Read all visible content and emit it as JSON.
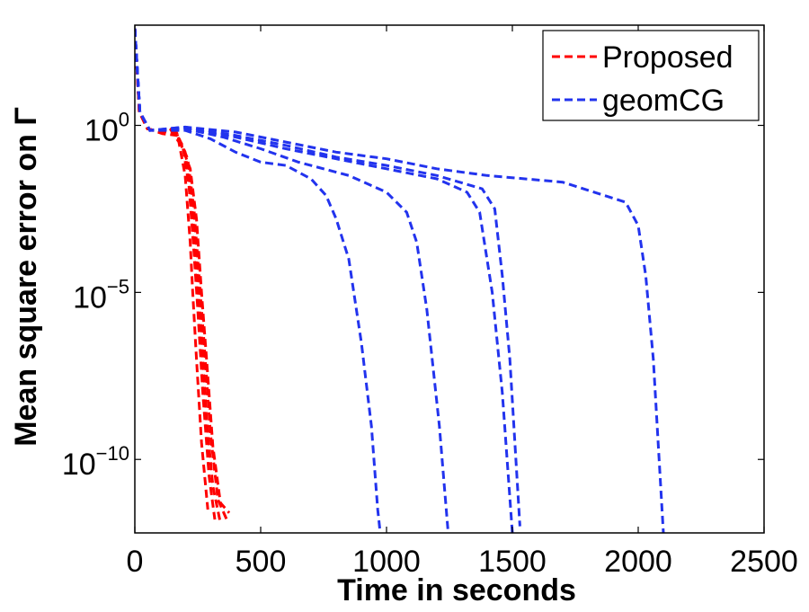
{
  "chart_data": {
    "type": "line",
    "title": "",
    "xlabel": "Time in seconds",
    "ylabel": "Mean square error on Γ",
    "x_scale": "linear",
    "y_scale": "log",
    "xlim": [
      0,
      2500
    ],
    "ylim_exponent": [
      -12.2,
      3
    ],
    "x_ticks": [
      0,
      500,
      1000,
      1500,
      2000,
      2500
    ],
    "x_tick_labels": [
      "0",
      "500",
      "1000",
      "1500",
      "2000",
      "2500"
    ],
    "y_ticks": [
      {
        "exponent": 0,
        "base": "10",
        "sup": "0"
      },
      {
        "exponent": -5,
        "base": "10",
        "sup": "−5"
      },
      {
        "exponent": -10,
        "base": "10",
        "sup": "−10"
      }
    ],
    "legend_position": "top-right",
    "colors": {
      "proposed": "#ff0000",
      "geomcg": "#2233ee"
    },
    "series": [
      {
        "name": "Proposed",
        "group": "proposed",
        "legend": true,
        "points": [
          [
            0,
            2.9
          ],
          [
            18,
            0.4
          ],
          [
            50,
            -0.1
          ],
          [
            100,
            -0.2
          ],
          [
            140,
            -0.1
          ],
          [
            175,
            -0.5
          ],
          [
            200,
            -1.5
          ],
          [
            220,
            -3.5
          ],
          [
            230,
            -5
          ],
          [
            245,
            -7
          ],
          [
            265,
            -9.5
          ],
          [
            290,
            -11.5
          ]
        ]
      },
      {
        "name": "Proposed-2",
        "group": "proposed",
        "legend": false,
        "points": [
          [
            0,
            2.9
          ],
          [
            18,
            0.4
          ],
          [
            50,
            -0.1
          ],
          [
            100,
            -0.2
          ],
          [
            150,
            -0.1
          ],
          [
            190,
            -0.6
          ],
          [
            215,
            -1.8
          ],
          [
            235,
            -3.8
          ],
          [
            250,
            -5.5
          ],
          [
            270,
            -8
          ],
          [
            295,
            -10.5
          ],
          [
            318,
            -11.8
          ]
        ]
      },
      {
        "name": "Proposed-3",
        "group": "proposed",
        "legend": false,
        "points": [
          [
            0,
            2.9
          ],
          [
            18,
            0.4
          ],
          [
            50,
            -0.1
          ],
          [
            100,
            -0.2
          ],
          [
            160,
            -0.15
          ],
          [
            200,
            -0.8
          ],
          [
            225,
            -2.2
          ],
          [
            245,
            -4.2
          ],
          [
            262,
            -6
          ],
          [
            285,
            -8.8
          ],
          [
            310,
            -10.8
          ],
          [
            340,
            -11.9
          ]
        ]
      },
      {
        "name": "Proposed-4",
        "group": "proposed",
        "legend": false,
        "points": [
          [
            0,
            2.9
          ],
          [
            18,
            0.4
          ],
          [
            50,
            -0.1
          ],
          [
            100,
            -0.2
          ],
          [
            165,
            -0.2
          ],
          [
            210,
            -1
          ],
          [
            235,
            -2.5
          ],
          [
            255,
            -4.5
          ],
          [
            275,
            -6.5
          ],
          [
            300,
            -9.2
          ],
          [
            330,
            -11.2
          ],
          [
            365,
            -11.8
          ]
        ]
      },
      {
        "name": "Proposed-5",
        "group": "proposed",
        "legend": false,
        "points": [
          [
            0,
            2.9
          ],
          [
            18,
            0.4
          ],
          [
            50,
            -0.1
          ],
          [
            110,
            -0.25
          ],
          [
            170,
            -0.3
          ],
          [
            220,
            -1.3
          ],
          [
            245,
            -2.8
          ],
          [
            265,
            -5
          ],
          [
            285,
            -7
          ],
          [
            310,
            -9.6
          ],
          [
            340,
            -11.3
          ],
          [
            375,
            -11.6
          ]
        ]
      },
      {
        "name": "geomCG",
        "group": "geomcg",
        "legend": true,
        "points": [
          [
            0,
            2.9
          ],
          [
            20,
            0.4
          ],
          [
            60,
            -0.15
          ],
          [
            200,
            -0.15
          ],
          [
            300,
            -0.4
          ],
          [
            400,
            -0.8
          ],
          [
            500,
            -1.1
          ],
          [
            600,
            -1.2
          ],
          [
            700,
            -1.6
          ],
          [
            760,
            -2.1
          ],
          [
            800,
            -2.8
          ],
          [
            850,
            -4
          ],
          [
            900,
            -6.5
          ],
          [
            940,
            -9
          ],
          [
            965,
            -11.5
          ],
          [
            975,
            -12.2
          ]
        ]
      },
      {
        "name": "geomCG-2",
        "group": "geomcg",
        "legend": false,
        "points": [
          [
            0,
            2.9
          ],
          [
            20,
            0.4
          ],
          [
            60,
            -0.15
          ],
          [
            200,
            -0.1
          ],
          [
            350,
            -0.35
          ],
          [
            500,
            -0.7
          ],
          [
            650,
            -1.1
          ],
          [
            850,
            -1.5
          ],
          [
            1000,
            -2
          ],
          [
            1080,
            -2.6
          ],
          [
            1120,
            -3.5
          ],
          [
            1160,
            -5.5
          ],
          [
            1210,
            -9
          ],
          [
            1245,
            -12.2
          ]
        ]
      },
      {
        "name": "geomCG-3",
        "group": "geomcg",
        "legend": false,
        "points": [
          [
            0,
            2.9
          ],
          [
            20,
            0.4
          ],
          [
            60,
            -0.15
          ],
          [
            200,
            -0.1
          ],
          [
            400,
            -0.35
          ],
          [
            600,
            -0.7
          ],
          [
            800,
            -1
          ],
          [
            1000,
            -1.3
          ],
          [
            1200,
            -1.6
          ],
          [
            1320,
            -2
          ],
          [
            1370,
            -2.6
          ],
          [
            1420,
            -5
          ],
          [
            1460,
            -8
          ],
          [
            1500,
            -12.2
          ]
        ]
      },
      {
        "name": "geomCG-4",
        "group": "geomcg",
        "legend": false,
        "points": [
          [
            0,
            2.9
          ],
          [
            20,
            0.4
          ],
          [
            60,
            -0.15
          ],
          [
            200,
            -0.05
          ],
          [
            400,
            -0.3
          ],
          [
            600,
            -0.6
          ],
          [
            800,
            -0.95
          ],
          [
            1000,
            -1.2
          ],
          [
            1200,
            -1.5
          ],
          [
            1380,
            -1.9
          ],
          [
            1430,
            -2.5
          ],
          [
            1460,
            -4.5
          ],
          [
            1490,
            -7
          ],
          [
            1530,
            -12
          ]
        ]
      },
      {
        "name": "geomCG-5",
        "group": "geomcg",
        "legend": false,
        "points": [
          [
            0,
            2.9
          ],
          [
            20,
            0.4
          ],
          [
            60,
            -0.15
          ],
          [
            200,
            -0.05
          ],
          [
            400,
            -0.2
          ],
          [
            600,
            -0.5
          ],
          [
            800,
            -0.8
          ],
          [
            1000,
            -1
          ],
          [
            1200,
            -1.3
          ],
          [
            1400,
            -1.5
          ],
          [
            1700,
            -1.7
          ],
          [
            1950,
            -2.3
          ],
          [
            2000,
            -3
          ],
          [
            2030,
            -4.5
          ],
          [
            2060,
            -7
          ],
          [
            2100,
            -12.2
          ]
        ]
      }
    ]
  }
}
